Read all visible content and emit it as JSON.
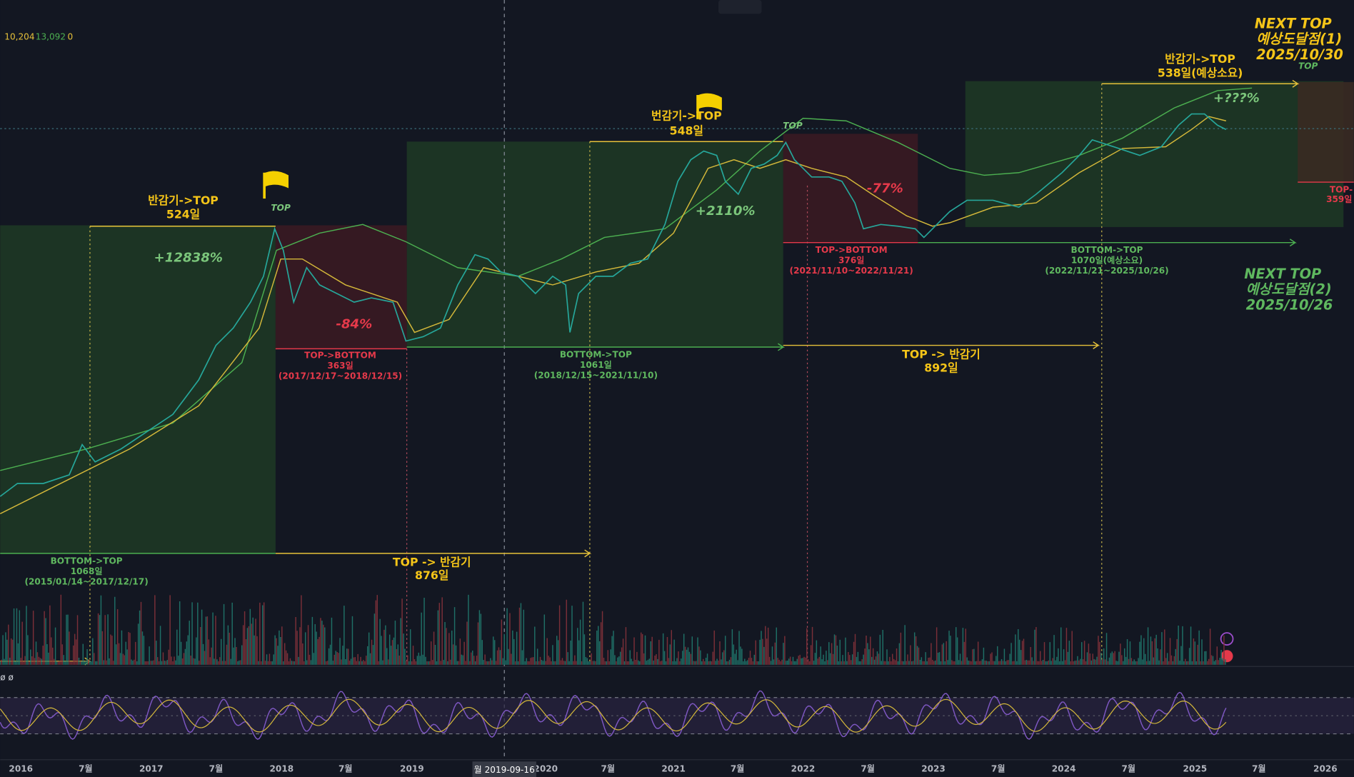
{
  "header": {
    "values": [
      "10,204",
      "13,092",
      "0"
    ]
  },
  "annotations": [
    [
      "반감기->TOP",
      "524일"
    ],
    [
      "TOP"
    ],
    [
      "+12838%"
    ],
    [
      "-84%"
    ],
    [
      "TOP->BOTTOM",
      "363일",
      "(2017/12/17~2018/12/15)"
    ],
    [
      "BOTTOM->TOP",
      "1061일",
      "(2018/12/15~2021/11/10)"
    ],
    [
      "번감기->TOP",
      "548일"
    ],
    [
      "TOP"
    ],
    [
      "+2110%"
    ],
    [
      "-77%"
    ],
    [
      "TOP->BOTTOM",
      "376일",
      "(2021/11/10~2022/11/21)"
    ],
    [
      "BOTTOM->TOP",
      "1070일(예상소요)",
      "(2022/11/21~2025/10/26)"
    ],
    [
      "반감기->TOP",
      "538일(예상소요)"
    ],
    [
      "TOP"
    ],
    [
      "+???%"
    ],
    [
      "NEXT TOP",
      "예상도달점(1)",
      "2025/10/30"
    ],
    [
      "TOP-",
      "359일"
    ],
    [
      "NEXT TOP",
      "예상도달점(2)",
      "2025/10/26"
    ],
    [
      "TOP -> 반감기",
      "892일"
    ],
    [
      "BOTTOM->TOP",
      "1068일",
      "(2015/01/14~2017/12/17)"
    ],
    [
      "TOP -> 반감기",
      "876일"
    ]
  ],
  "x_axis": {
    "labels": [
      "2016",
      "7월",
      "2017",
      "7월",
      "2018",
      "7월",
      "2019",
      "2020",
      "7월",
      "2021",
      "7월",
      "2022",
      "7월",
      "2023",
      "7월",
      "2024",
      "7월",
      "2025",
      "7월",
      "2026"
    ]
  },
  "crosshair_label": "월 2019-09-16",
  "rsi_label": "ø ø"
}
